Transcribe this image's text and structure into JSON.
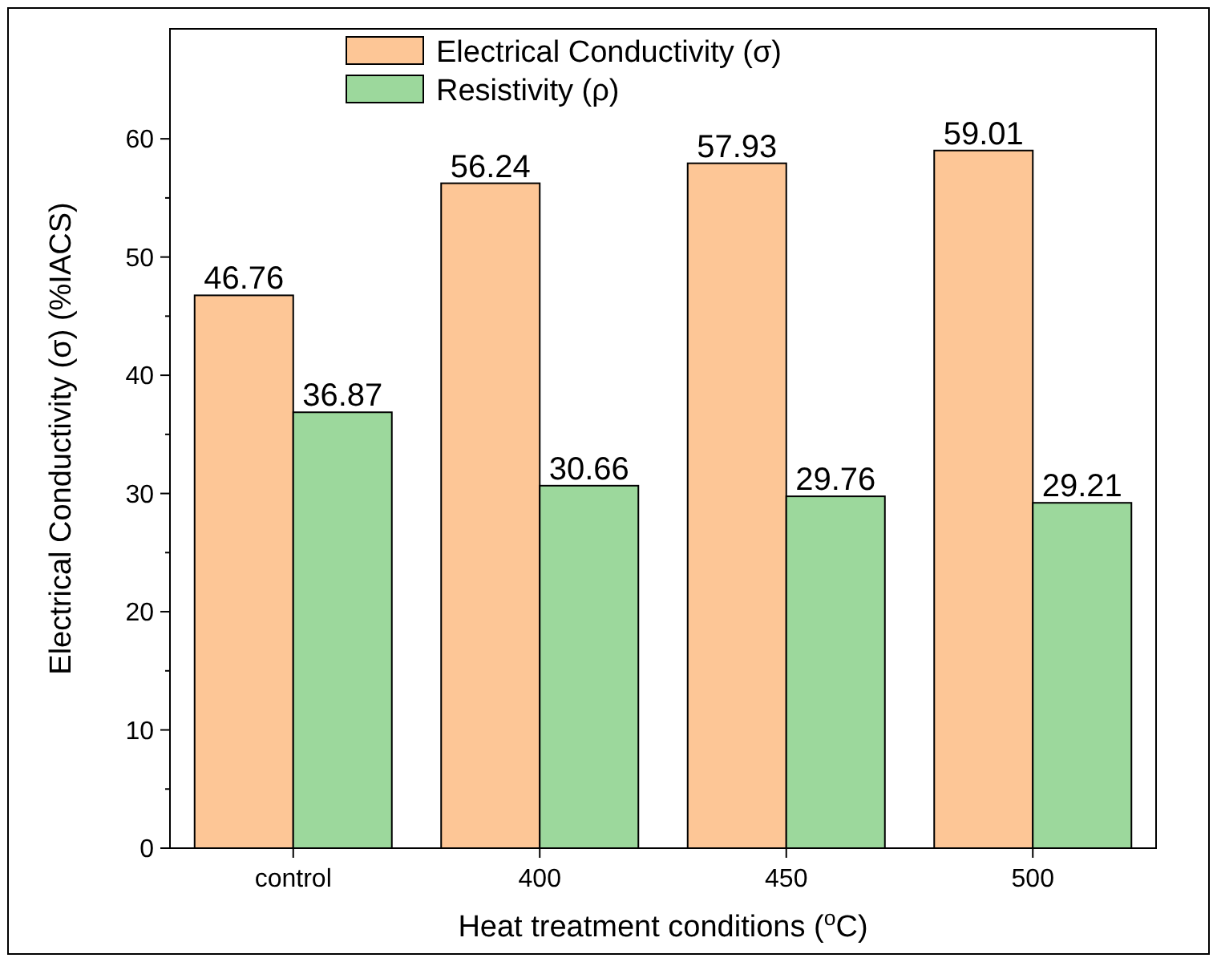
{
  "chart_data": {
    "type": "bar",
    "xlabel": "Heat treatment conditions ($^{o}$C)",
    "ylabel": "Electrical Conductivity (σ) (%IACS)",
    "categories": [
      "control",
      "400",
      "450",
      "500"
    ],
    "series": [
      {
        "name": "Electrical Conductivity (σ)",
        "color": "#fdc696",
        "values": [
          46.76,
          56.24,
          57.93,
          59.01
        ]
      },
      {
        "name": "Resistivity (ρ)",
        "color": "#9cd89c",
        "values": [
          36.87,
          30.66,
          29.76,
          29.21
        ]
      }
    ],
    "ylim": [
      0,
      69.3
    ],
    "yticks": [
      0,
      10,
      20,
      30,
      40,
      50,
      60
    ],
    "data_labels": true,
    "legend": "top",
    "grid": false
  }
}
